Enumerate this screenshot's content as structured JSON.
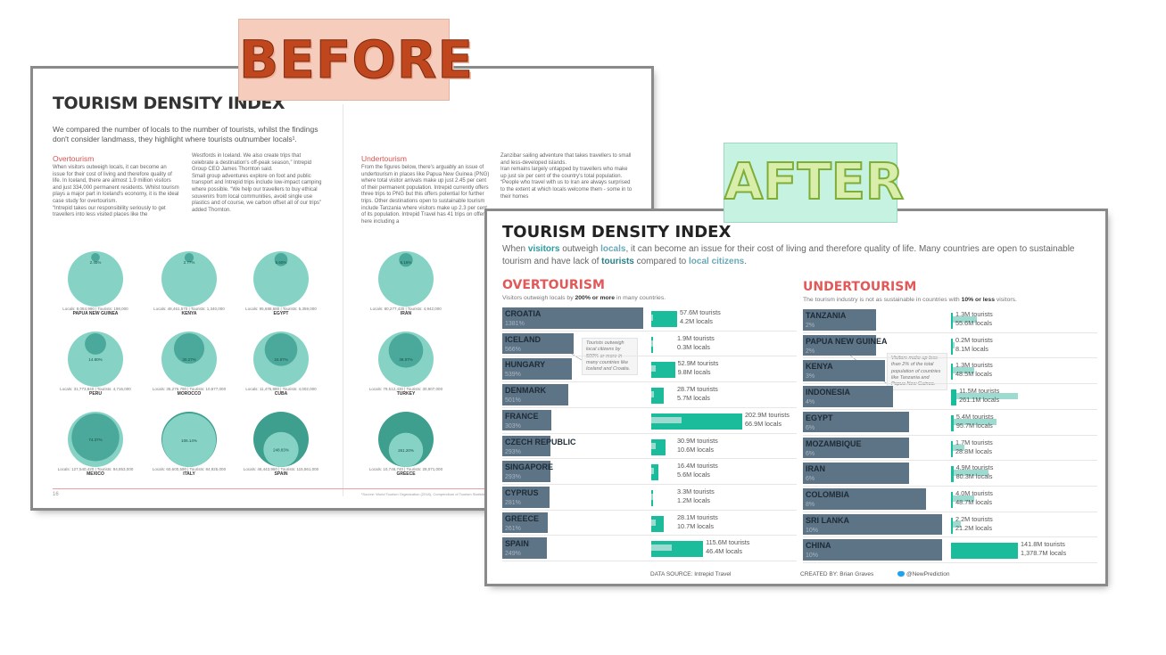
{
  "labels": {
    "before": "BEFORE",
    "after": "AFTER"
  },
  "before": {
    "title": "TOURISM DENSITY INDEX",
    "intro": "We compared the number of locals to the number of tourists, whilst the findings don't consider landmass, they highlight where tourists outnumber locals¹.",
    "overtourism_heading": "Overtourism",
    "undertourism_heading": "Undertourism",
    "col1": "When visitors outweigh locals, it can become an issue for their cost of living and therefore quality of life. In Iceland, there are almost 1.9 million visitors and just 334,000 permanent residents. Whilst tourism plays a major part in Iceland's economy, it is the ideal case study for overtourism.\n“Intrepid takes our responsibility seriously to get travellers into less visited places like the",
    "col2": "Westfords in Iceland. We also create trips that celebrate a destination's off-peak season,” Intrepid Group CEO James Thornton said.\nSmall group adventures explore on foot and public transport and Intrepid trips include low-impact camping where possible. “We help our travellers to buy ethical souvenirs from local communities, avoid single use plastics and of course, we carbon offset all of our trips” added Thornton.",
    "col3": "From the figures below, there's arguably an issue of undertourism in places like Papua New Guinea (PNG) where total visitor arrivals make up just 2.45 per cent of their permanent population. Intrepid currently offers three trips to PNG but this offers potential for further trips. Other destinations open to sustainable tourism include Tanzania where visitors make up 2.3 per cent of its population. Intrepid Travel has 41 trips on offer here including a",
    "col4": "Zanzibar sailing adventure that takes travellers to small and less-developed islands.\nIran remains largely untapped by travellers who make up just six per cent of the country's total population. “People who travel with us to Iran are always surprised to the extent at which locals welcome them - some in to their homes",
    "page_number": "16",
    "source_note": "¹Source: World Tourism Organization (2018), Compendium of Tourism Statistics",
    "bubbles": [
      {
        "country": "PAPUA NEW GUINEA",
        "locals_line": "Locals: 8,084,990 | Tourists: 198,000",
        "pct_label": "2.45%",
        "ratio": 0.0245
      },
      {
        "country": "KENYA",
        "locals_line": "Locals: 48,461,570 | Tourists: 1,340,000",
        "pct_label": "2.77%",
        "ratio": 0.0277
      },
      {
        "country": "EGYPT",
        "locals_line": "Locals: 95,688,680 | Tourists: 5,359,000",
        "pct_label": "5.60%",
        "ratio": 0.056
      },
      {
        "country": "IRAN",
        "locals_line": "Locals: 80,277,430 | Tourists: 4,942,000",
        "pct_label": "6.16%",
        "ratio": 0.0616
      },
      {
        "country": "PERU",
        "locals_line": "Locals: 31,773,840 | Tourists: 4,716,000",
        "pct_label": "14.80%",
        "ratio": 0.148
      },
      {
        "country": "MOROCCO",
        "locals_line": "Locals: 35,276,790 | Tourists: 10,677,000",
        "pct_label": "30.27%",
        "ratio": 0.3027
      },
      {
        "country": "CUBA",
        "locals_line": "Locals: 11,475,980 | Tourists: 4,002,000",
        "pct_label": "34.87%",
        "ratio": 0.3487
      },
      {
        "country": "TURKEY",
        "locals_line": "Locals: 79,512,430 | Tourists: 30,907,000",
        "pct_label": "38.87%",
        "ratio": 0.3887
      },
      {
        "country": "MEXICO",
        "locals_line": "Locals: 127,540,420 | Tourists: 94,853,000",
        "pct_label": "74.37%",
        "ratio": 0.7437
      },
      {
        "country": "ITALY",
        "locals_line": "Locals: 60,600,590 | Tourists: 84,925,000",
        "pct_label": "106.14%",
        "ratio": 1.0614
      },
      {
        "country": "SPAIN",
        "locals_line": "Locals: 46,443,960 | Tourists: 115,561,000",
        "pct_label": "248.83%",
        "ratio": 2.4883
      },
      {
        "country": "GREECE",
        "locals_line": "Locals: 10,746,740 | Tourists: 28,071,000",
        "pct_label": "261.20%",
        "ratio": 2.612
      }
    ]
  },
  "after": {
    "title": "TOURISM DENSITY INDEX",
    "intro_parts": [
      "When ",
      "visitors",
      " outweigh ",
      "locals",
      ", it can become an issue for their cost of living and therefore quality of life. Many countries are open to sustainable tourism and have lack of ",
      "tourists",
      " compared to ",
      "local citizens",
      "."
    ],
    "colors": {
      "tourists": "#1abc9c",
      "locals": "#9ddbd0",
      "ratio_bar": "#5d7386",
      "heading": "#e05a5a",
      "visitors_word": "#2a9aa0",
      "locals_word": "#6aa8b7"
    },
    "overtourism": {
      "title": "OVERTOURISM",
      "subtitle_pre": "Visitors outweigh locals by ",
      "subtitle_bold": "200% or more",
      "subtitle_post": " in many countries.",
      "note": "Tourists outweigh local citizens by 500% or more in many countries like Iceland and Croatia."
    },
    "undertourism": {
      "title": "UNDERTOURISM",
      "subtitle_pre": "The tourism industry is not as sustainable in countries with ",
      "subtitle_bold": "10% or less",
      "subtitle_post": " visitors.",
      "note": "Visitors make up less than 2% of the total population of countries like Tanzania and Papua New Guinea."
    },
    "footer": {
      "source": "DATA SOURCE: Intrepid Travel",
      "creator": "CREATED BY: Brian Graves",
      "twitter": "@NewPrediction"
    }
  },
  "chart_data": [
    {
      "type": "bar",
      "title": "OVERTOURISM",
      "categories": [
        "CROATIA",
        "ICELAND",
        "HUNGARY",
        "DENMARK",
        "FRANCE",
        "CZECH REPUBLIC",
        "SINGAPORE",
        "CYPRUS",
        "GREECE",
        "SPAIN"
      ],
      "ratio_labels": [
        "1381%",
        "566%",
        "539%",
        "501%",
        "303%",
        "293%",
        "293%",
        "281%",
        "261%",
        "249%"
      ],
      "ratio_values": [
        1381,
        566,
        539,
        501,
        303,
        293,
        293,
        281,
        261,
        249
      ],
      "tourists_labels": [
        "57.6M tourists",
        "1.9M tourists",
        "52.9M tourists",
        "28.7M tourists",
        "202.9M tourists",
        "30.9M tourists",
        "16.4M tourists",
        "3.3M tourists",
        "28.1M tourists",
        "115.6M tourists"
      ],
      "locals_labels": [
        "4.2M locals",
        "0.3M locals",
        "9.8M locals",
        "5.7M locals",
        "66.9M locals",
        "10.6M locals",
        "5.6M locals",
        "1.2M locals",
        "10.7M locals",
        "46.4M locals"
      ],
      "tourists_values": [
        57.6,
        1.9,
        52.9,
        28.7,
        202.9,
        30.9,
        16.4,
        3.3,
        28.1,
        115.6
      ],
      "locals_values": [
        4.2,
        0.3,
        9.8,
        5.7,
        66.9,
        10.6,
        5.6,
        1.2,
        10.7,
        46.4
      ]
    },
    {
      "type": "bar",
      "title": "UNDERTOURISM",
      "categories": [
        "TANZANIA",
        "PAPUA NEW GUINEA",
        "KENYA",
        "INDONESIA",
        "EGYPT",
        "MOZAMBIQUE",
        "IRAN",
        "COLOMBIA",
        "SRI LANKA",
        "CHINA"
      ],
      "ratio_labels": [
        "2%",
        "2%",
        "3%",
        "4%",
        "6%",
        "6%",
        "6%",
        "8%",
        "10%",
        "10%"
      ],
      "ratio_values": [
        2,
        2,
        3,
        4,
        6,
        6,
        6,
        8,
        10,
        10
      ],
      "tourists_labels": [
        "1.3M tourists",
        "0.2M tourists",
        "1.3M tourists",
        "11.5M tourists",
        "5.4M tourists",
        "1.7M tourists",
        "4.9M tourists",
        "4.0M tourists",
        "2.2M tourists",
        "141.8M tourists"
      ],
      "locals_labels": [
        "55.6M locals",
        "8.1M locals",
        "48.5M locals",
        "261.1M locals",
        "95.7M locals",
        "28.8M locals",
        "80.3M locals",
        "48.7M locals",
        "21.2M locals",
        "1,378.7M locals"
      ],
      "tourists_values": [
        1.3,
        0.2,
        1.3,
        11.5,
        5.4,
        1.7,
        4.9,
        4.0,
        2.2,
        141.8
      ],
      "locals_values": [
        55.6,
        8.1,
        48.5,
        261.1,
        95.7,
        28.8,
        80.3,
        48.7,
        21.2,
        1378.7
      ]
    }
  ]
}
